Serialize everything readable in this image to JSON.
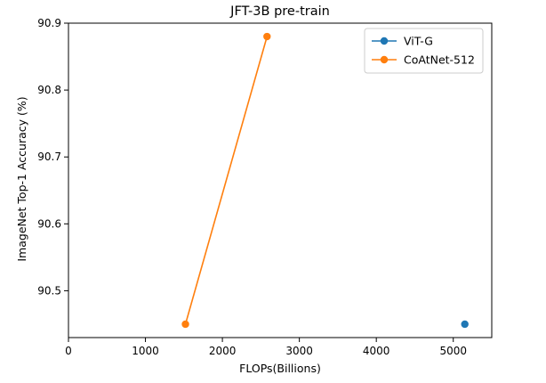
{
  "chart_data": {
    "type": "line",
    "title": "JFT-3B pre-train",
    "xlabel": "FLOPs(Billions)",
    "ylabel": "ImageNet Top-1 Accuracy (%)",
    "xlim": [
      0,
      5500
    ],
    "ylim": [
      90.43,
      90.9
    ],
    "xticks": [
      0,
      1000,
      2000,
      3000,
      4000,
      5000
    ],
    "xtick_labels": [
      "0",
      "1000",
      "2000",
      "3000",
      "4000",
      "5000"
    ],
    "yticks": [
      90.5,
      90.6,
      90.7,
      90.8,
      90.9
    ],
    "ytick_labels": [
      "90.5",
      "90.6",
      "90.7",
      "90.8",
      "90.9"
    ],
    "grid": false,
    "legend_position": "top-right",
    "series": [
      {
        "name": "ViT-G",
        "color": "#1f77b4",
        "x": [
          5150
        ],
        "y": [
          90.45
        ]
      },
      {
        "name": "CoAtNet-512",
        "color": "#ff7f0e",
        "x": [
          1520,
          2580
        ],
        "y": [
          90.45,
          90.88
        ]
      }
    ]
  }
}
